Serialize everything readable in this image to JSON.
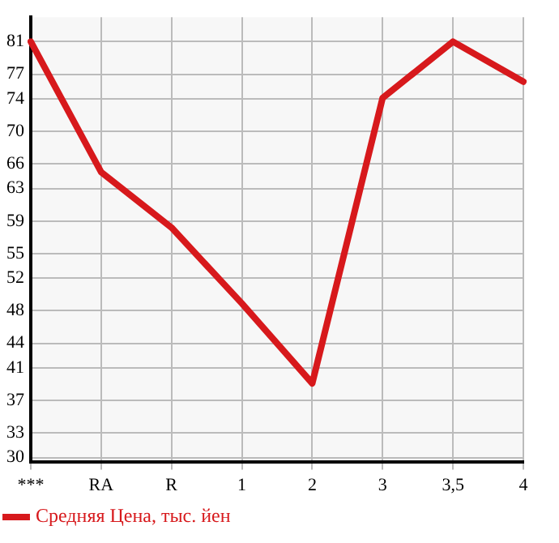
{
  "chart_data": {
    "type": "line",
    "categories": [
      "***",
      "RA",
      "R",
      "1",
      "2",
      "3",
      "3,5",
      "4"
    ],
    "series": [
      {
        "name": "Средняя Цена, тыс. йен",
        "color": "#d7191c",
        "values": [
          81,
          65,
          58.2,
          48.9,
          39.1,
          74.1,
          81,
          76.1
        ]
      }
    ],
    "ylim": [
      29.5,
      84
    ],
    "yticks": [
      30,
      33,
      37,
      41,
      44,
      48,
      52,
      55,
      59,
      63,
      66,
      70,
      74,
      77,
      81
    ],
    "grid": true,
    "legend": "bottom left",
    "marker": "none",
    "line_style": "solid"
  }
}
